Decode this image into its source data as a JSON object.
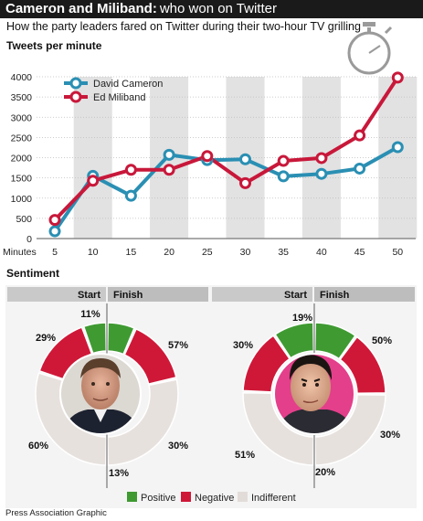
{
  "title": {
    "bold": "Cameron and Miliband:",
    "normal": "who won on Twitter"
  },
  "subtitle": "How the party leaders fared on Twitter during their two-hour TV grilling",
  "source": "Press Association Graphic",
  "colors": {
    "cameron": "#2a8fb3",
    "miliband": "#c8183a",
    "positive": "#3f9a32",
    "negative": "#cf1838",
    "indifferent": "#e7e1de",
    "band": "#e2e2e2",
    "header": "#c9c9c9"
  },
  "icons": {
    "timer": "stopwatch-icon"
  },
  "chart_data": [
    {
      "type": "line",
      "title": "Tweets per minute",
      "xlabel": "Minutes",
      "ylabel": "",
      "x": [
        5,
        10,
        15,
        20,
        25,
        30,
        35,
        40,
        45,
        50
      ],
      "ylim": [
        0,
        4000
      ],
      "yticks": [
        0,
        500,
        1000,
        1500,
        2000,
        2500,
        3000,
        3500,
        4000
      ],
      "legend": "top-left",
      "series": [
        {
          "name": "David Cameron",
          "values": [
            180,
            1550,
            1060,
            2070,
            1940,
            1960,
            1540,
            1600,
            1730,
            2260
          ]
        },
        {
          "name": "Ed Miliband",
          "values": [
            460,
            1430,
            1700,
            1700,
            2040,
            1370,
            1920,
            1990,
            2550,
            3980
          ]
        }
      ]
    },
    {
      "type": "pie",
      "title": "Sentiment",
      "subject": "David Cameron",
      "header_left": "Start",
      "header_right": "Finish",
      "categories": [
        "Positive",
        "Negative",
        "Indifferent"
      ],
      "start": [
        11,
        29,
        60
      ],
      "finish": [
        13,
        30,
        57
      ],
      "labels": {
        "start": [
          "11%",
          "29%",
          "60%"
        ],
        "finish": [
          "13%",
          "30%",
          "57%"
        ]
      }
    },
    {
      "type": "pie",
      "title": "Sentiment",
      "subject": "Ed Miliband",
      "header_left": "Start",
      "header_right": "Finish",
      "categories": [
        "Positive",
        "Negative",
        "Indifferent"
      ],
      "start": [
        19,
        30,
        51
      ],
      "finish": [
        20,
        30,
        50
      ],
      "labels": {
        "start": [
          "19%",
          "30%",
          "51%"
        ],
        "finish": [
          "20%",
          "30%",
          "50%"
        ]
      }
    }
  ],
  "legend": [
    "Positive",
    "Negative",
    "Indifferent"
  ]
}
